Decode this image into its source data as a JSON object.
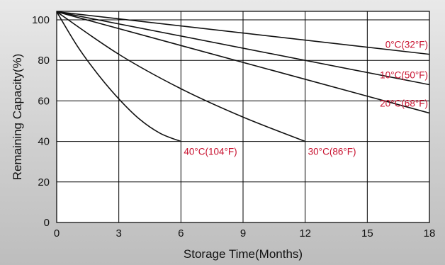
{
  "chart_data": {
    "type": "line",
    "title": "",
    "xlabel": "Storage Time(Months)",
    "ylabel": "Remaining Capacity(%)",
    "xlim": [
      0,
      18
    ],
    "ylim": [
      0,
      100
    ],
    "x_ticks": [
      0,
      3,
      6,
      9,
      12,
      15,
      18
    ],
    "y_ticks": [
      0,
      20,
      40,
      60,
      80,
      100
    ],
    "grid": true,
    "plot_background": "#ffffff",
    "line_color": "#111111",
    "label_color": "#c8102e",
    "series": [
      {
        "name": "0°C(32°F)",
        "x": [
          0,
          18
        ],
        "y": [
          104,
          83
        ]
      },
      {
        "name": "10°C(50°F)",
        "x": [
          0,
          18
        ],
        "y": [
          104,
          68
        ]
      },
      {
        "name": "20°C(68°F)",
        "x": [
          0,
          18
        ],
        "y": [
          104,
          54
        ]
      },
      {
        "name": "30°C(86°F)",
        "x": [
          0,
          3,
          6,
          9,
          12
        ],
        "y": [
          104,
          83,
          66,
          52,
          40
        ]
      },
      {
        "name": "40°C(104°F)",
        "x": [
          0,
          1,
          2,
          3,
          4,
          5,
          6
        ],
        "y": [
          104,
          87,
          73,
          61,
          51,
          44,
          40
        ]
      }
    ]
  }
}
